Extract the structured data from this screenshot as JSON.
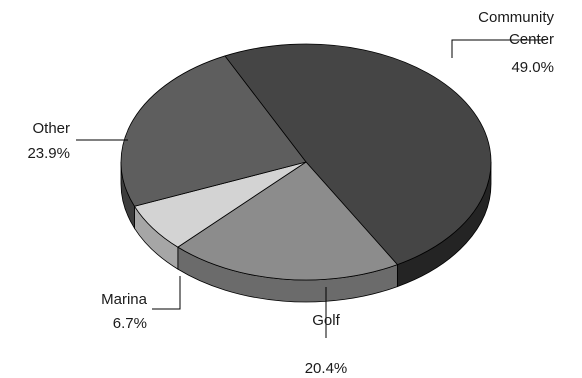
{
  "chart_data": {
    "type": "pie",
    "title": "",
    "three_d": true,
    "legend": "none",
    "slices": [
      {
        "label": "Community Center",
        "label_lines": [
          "Community",
          "Center"
        ],
        "value": 49.0,
        "value_label": "49.0%",
        "color": "#454545",
        "side_color": "#242424"
      },
      {
        "label": "Golf",
        "label_lines": [
          "Golf"
        ],
        "value": 20.4,
        "value_label": "20.4%",
        "color": "#8c8c8c",
        "side_color": "#6b6b6b"
      },
      {
        "label": "Marina",
        "label_lines": [
          "Marina"
        ],
        "value": 6.7,
        "value_label": "6.7%",
        "color": "#d3d3d3",
        "side_color": "#a6a6a6"
      },
      {
        "label": "Other",
        "label_lines": [
          "Other"
        ],
        "value": 23.9,
        "value_label": "23.9%",
        "color": "#5e5e5e",
        "side_color": "#3d3d3d"
      }
    ]
  }
}
